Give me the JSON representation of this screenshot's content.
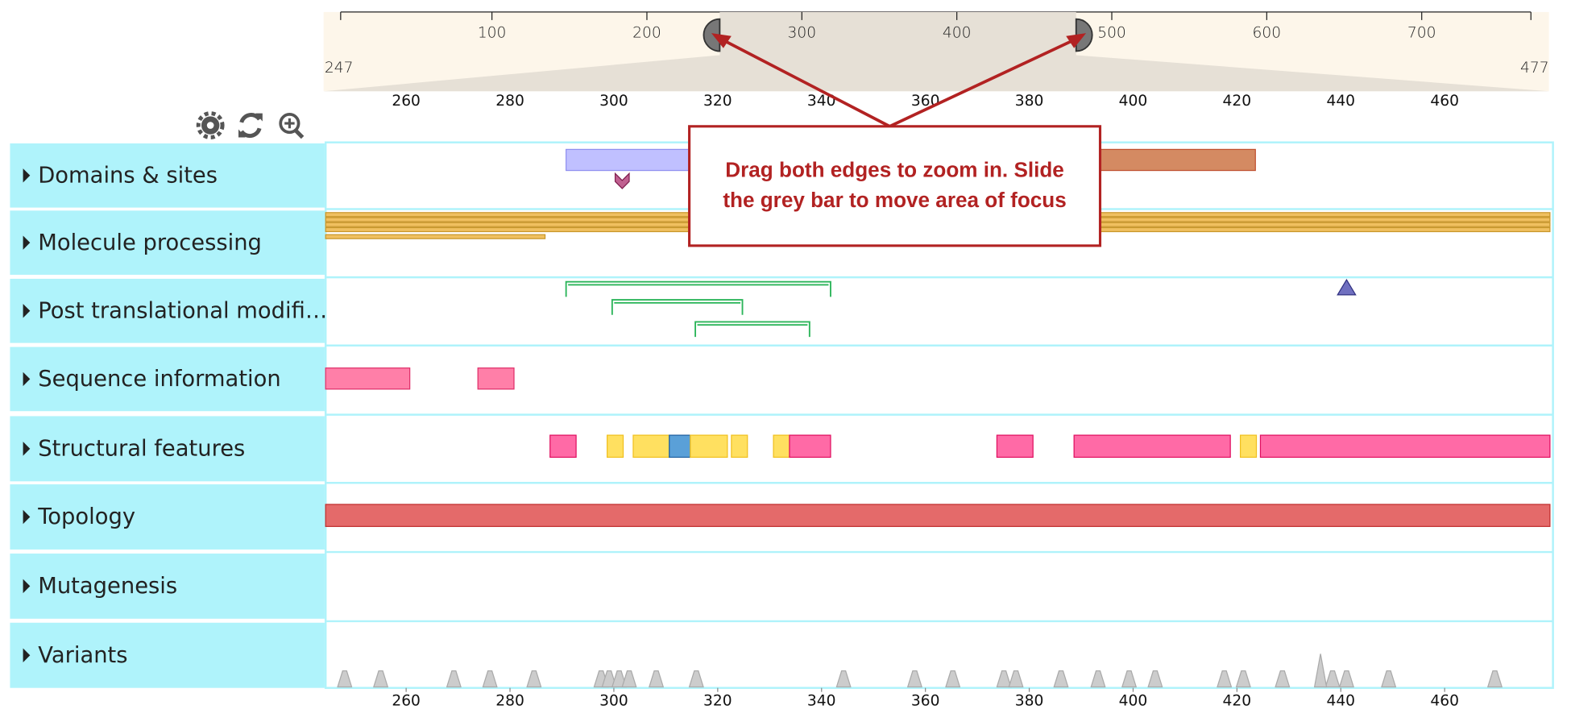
{
  "navigation": {
    "ruler_ticks": [
      100,
      200,
      300,
      400,
      500,
      600,
      700
    ],
    "start": 247,
    "end": 477
  },
  "zoom_axis": {
    "ticks": [
      260,
      280,
      300,
      320,
      340,
      360,
      380,
      400,
      420,
      440,
      460
    ]
  },
  "tracks": [
    "Domains & sites",
    "Molecule processing",
    "Post translational modifi…",
    "Sequence information",
    "Structural features",
    "Topology",
    "Mutagenesis",
    "Variants"
  ],
  "callout": {
    "lines": [
      "Drag both edges to zoom in. Slide",
      "the grey bar to move area of focus"
    ]
  }
}
